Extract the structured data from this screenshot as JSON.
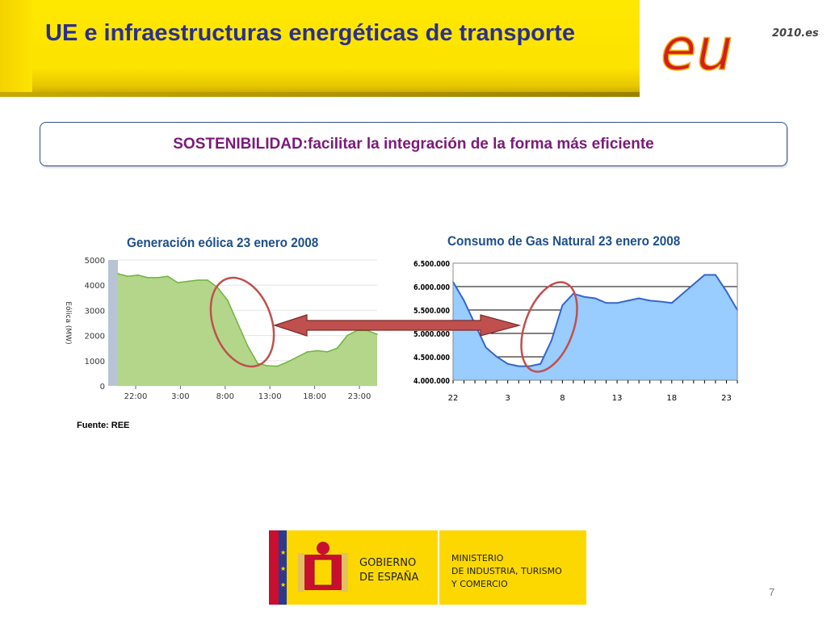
{
  "slide": {
    "title": "UE e infraestructuras energéticas de transporte",
    "logo_text": "eu",
    "logo_year": "2010.es",
    "banner_key": "SOSTENIBILIDAD:",
    "banner_value": " facilitar la integración de la forma más eficiente",
    "source": "Fuente: REE",
    "page_number": "7",
    "footer_left": "GOBIERNO DE ESPAÑA",
    "footer_right": "MINISTERIO DE INDUSTRIA, TURISMO Y COMERCIO",
    "colors": {
      "header_yellow": "#fde300",
      "title_blue": "#2a2f8f",
      "banner_purple": "#7b1a7b",
      "arrow_red": "#c0504d",
      "wind_fill": "#b3d68a",
      "wind_line": "#6fb43a",
      "gas_fill": "#99ccff",
      "gas_line": "#3366cc"
    }
  },
  "chart_data": [
    {
      "type": "area",
      "title": "Generación eólica 23 enero 2008",
      "ylabel": "Eólica (MW)",
      "xlabel": "",
      "ylim": [
        0,
        5000
      ],
      "yticks": [
        "0",
        "1000",
        "2000",
        "3000",
        "4000",
        "5000"
      ],
      "xticks": [
        "22:00",
        "3:00",
        "8:00",
        "13:00",
        "18:00",
        "23:00"
      ],
      "grid": true,
      "x": [
        0,
        1,
        2,
        3,
        4,
        5,
        6,
        7,
        8,
        9,
        10,
        11,
        12,
        13,
        14,
        15,
        16,
        17,
        18,
        19,
        20,
        21,
        22,
        23,
        24,
        25,
        26
      ],
      "values": [
        4450,
        4350,
        4400,
        4300,
        4300,
        4350,
        4100,
        4150,
        4200,
        4200,
        3900,
        3400,
        2500,
        1600,
        900,
        800,
        780,
        950,
        1150,
        1350,
        1400,
        1350,
        1500,
        2000,
        2200,
        2200,
        2050
      ]
    },
    {
      "type": "area",
      "title": "Consumo de Gas Natural 23 enero 2008",
      "ylim": [
        4000000,
        6500000
      ],
      "yticks": [
        "4.000.000",
        "4.500.000",
        "5.000.000",
        "5.500.000",
        "6.000.000",
        "6.500.000"
      ],
      "xticks": [
        "22",
        "3",
        "8",
        "13",
        "18",
        "23"
      ],
      "grid": true,
      "x": [
        22,
        23,
        0,
        1,
        2,
        3,
        4,
        5,
        6,
        7,
        8,
        9,
        10,
        11,
        12,
        13,
        14,
        15,
        16,
        17,
        18,
        19,
        20,
        21,
        22,
        23,
        24
      ],
      "values": [
        6100000,
        5700000,
        5200000,
        4700000,
        4500000,
        4350000,
        4300000,
        4300000,
        4350000,
        4850000,
        5600000,
        5850000,
        5780000,
        5750000,
        5650000,
        5650000,
        5700000,
        5750000,
        5700000,
        5680000,
        5650000,
        5850000,
        6050000,
        6250000,
        6250000,
        5900000,
        5500000
      ]
    }
  ]
}
